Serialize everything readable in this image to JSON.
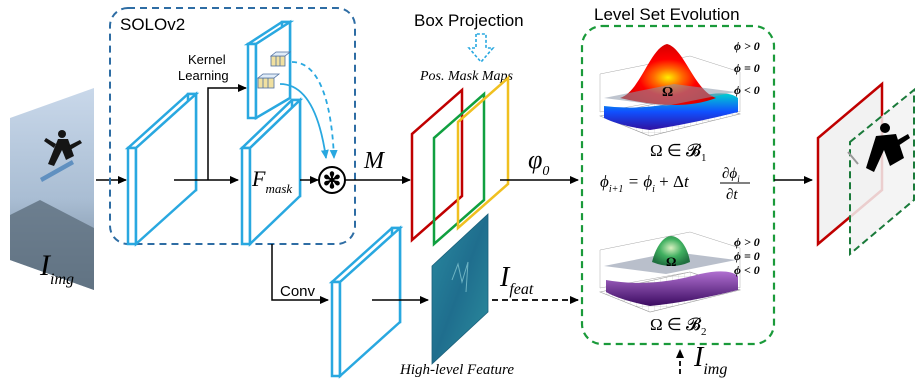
{
  "labels": {
    "solov2": "SOLOv2",
    "kernel_learning_1": "Kernel",
    "kernel_learning_2": "Learning",
    "box_projection": "Box Projection",
    "pos_mask_maps": "Pos. Mask Maps",
    "level_set_evolution": "Level Set Evolution",
    "m_label": "M",
    "conv": "Conv",
    "high_level_feature": "High-level Feature",
    "i_img_main": "I",
    "i_img_main_sub": "img",
    "f_mask": "F",
    "f_mask_sub": "mask",
    "phi0": "φ",
    "phi0_sub": "0",
    "i_feat": "I",
    "i_feat_sub": "feat",
    "i_img_bottom": "I",
    "i_img_bottom_sub": "img",
    "conv_op": "✻"
  },
  "level_set": {
    "phi_pos": "ϕ > 0",
    "phi_zero": "ϕ = 0",
    "phi_neg": "ϕ < 0",
    "omega": "Ω",
    "omega_b1": "Ω ∈ 𝓑",
    "omega_b1_sub": "1",
    "omega_b2": "Ω ∈ 𝓑",
    "omega_b2_sub": "2",
    "equation": "ϕi+1 = ϕi + Δt ∂ϕi/∂t"
  },
  "colors": {
    "solo_box": "#2e6da4",
    "level_box": "#1a9a3a",
    "feature_blue": "#29a8e0",
    "mask_red": "#c00000",
    "mask_green": "#10a040",
    "mask_yellow": "#f0c020"
  }
}
